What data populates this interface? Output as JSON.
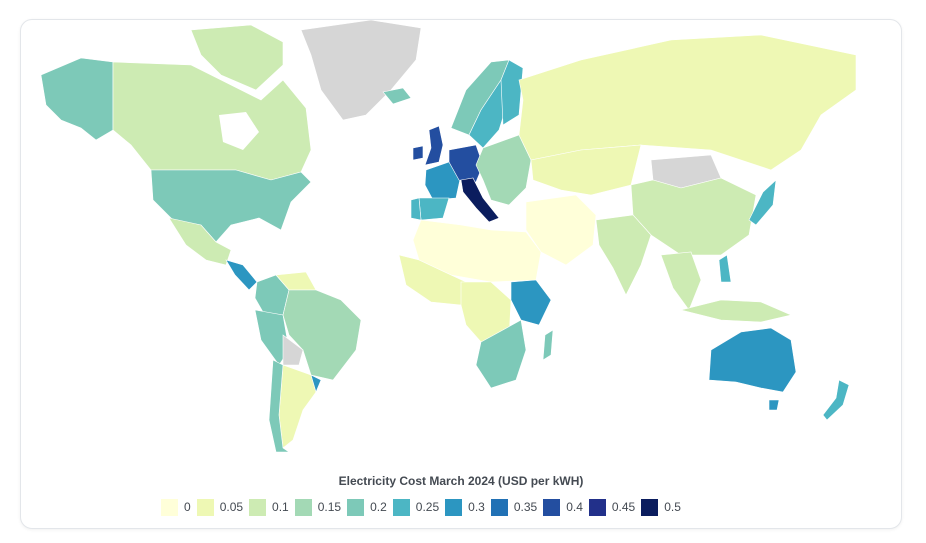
{
  "legend": {
    "title": "Electricity Cost March 2024 (USD per kWH)",
    "items": [
      {
        "label": "0",
        "color": "#ffffd9"
      },
      {
        "label": "0.05",
        "color": "#eef8b4"
      },
      {
        "label": "0.1",
        "color": "#cdebb3"
      },
      {
        "label": "0.15",
        "color": "#a3d9b5"
      },
      {
        "label": "0.2",
        "color": "#7dc9b8"
      },
      {
        "label": "0.25",
        "color": "#4cb6c4"
      },
      {
        "label": "0.3",
        "color": "#2c96c1"
      },
      {
        "label": "0.35",
        "color": "#2171b5"
      },
      {
        "label": "0.4",
        "color": "#234ea0"
      },
      {
        "label": "0.45",
        "color": "#22308a"
      },
      {
        "label": "0.5",
        "color": "#0b1d5e"
      }
    ]
  },
  "map": {
    "no_data_color": "#d6d6d6",
    "regions": [
      {
        "name": "Alaska",
        "bucket": "0.2"
      },
      {
        "name": "Canada",
        "bucket": "0.1"
      },
      {
        "name": "Greenland",
        "bucket": "no-data"
      },
      {
        "name": "United States",
        "bucket": "0.2"
      },
      {
        "name": "Mexico",
        "bucket": "0.1"
      },
      {
        "name": "Central America",
        "bucket": "0.3"
      },
      {
        "name": "Colombia",
        "bucket": "0.2"
      },
      {
        "name": "Venezuela",
        "bucket": "0.05"
      },
      {
        "name": "Brazil",
        "bucket": "0.15"
      },
      {
        "name": "Peru",
        "bucket": "0.2"
      },
      {
        "name": "Bolivia",
        "bucket": "no-data"
      },
      {
        "name": "Argentina",
        "bucket": "0.05"
      },
      {
        "name": "Chile",
        "bucket": "0.2"
      },
      {
        "name": "Uruguay",
        "bucket": "0.3"
      },
      {
        "name": "Iceland",
        "bucket": "0.2"
      },
      {
        "name": "Norway",
        "bucket": "0.2"
      },
      {
        "name": "Sweden",
        "bucket": "0.25"
      },
      {
        "name": "Finland",
        "bucket": "0.25"
      },
      {
        "name": "United Kingdom",
        "bucket": "0.4"
      },
      {
        "name": "Ireland",
        "bucket": "0.4"
      },
      {
        "name": "France",
        "bucket": "0.3"
      },
      {
        "name": "Spain",
        "bucket": "0.25"
      },
      {
        "name": "Portugal",
        "bucket": "0.25"
      },
      {
        "name": "Germany",
        "bucket": "0.4"
      },
      {
        "name": "Italy",
        "bucket": "0.5"
      },
      {
        "name": "Eastern Europe",
        "bucket": "0.15"
      },
      {
        "name": "Russia",
        "bucket": "0.05"
      },
      {
        "name": "Kazakhstan",
        "bucket": "0.05"
      },
      {
        "name": "Mongolia",
        "bucket": "no-data"
      },
      {
        "name": "China",
        "bucket": "0.1"
      },
      {
        "name": "Japan",
        "bucket": "0.25"
      },
      {
        "name": "India",
        "bucket": "0.1"
      },
      {
        "name": "Middle East",
        "bucket": "0"
      },
      {
        "name": "North Africa",
        "bucket": "0"
      },
      {
        "name": "West Africa",
        "bucket": "0.05"
      },
      {
        "name": "Central Africa",
        "bucket": "0.05"
      },
      {
        "name": "East Africa",
        "bucket": "0.3"
      },
      {
        "name": "Southern Africa",
        "bucket": "0.2"
      },
      {
        "name": "Madagascar",
        "bucket": "0.2"
      },
      {
        "name": "Southeast Asia",
        "bucket": "0.1"
      },
      {
        "name": "Philippines",
        "bucket": "0.25"
      },
      {
        "name": "Indonesia",
        "bucket": "0.1"
      },
      {
        "name": "Australia",
        "bucket": "0.3"
      },
      {
        "name": "New Zealand",
        "bucket": "0.25"
      }
    ]
  }
}
